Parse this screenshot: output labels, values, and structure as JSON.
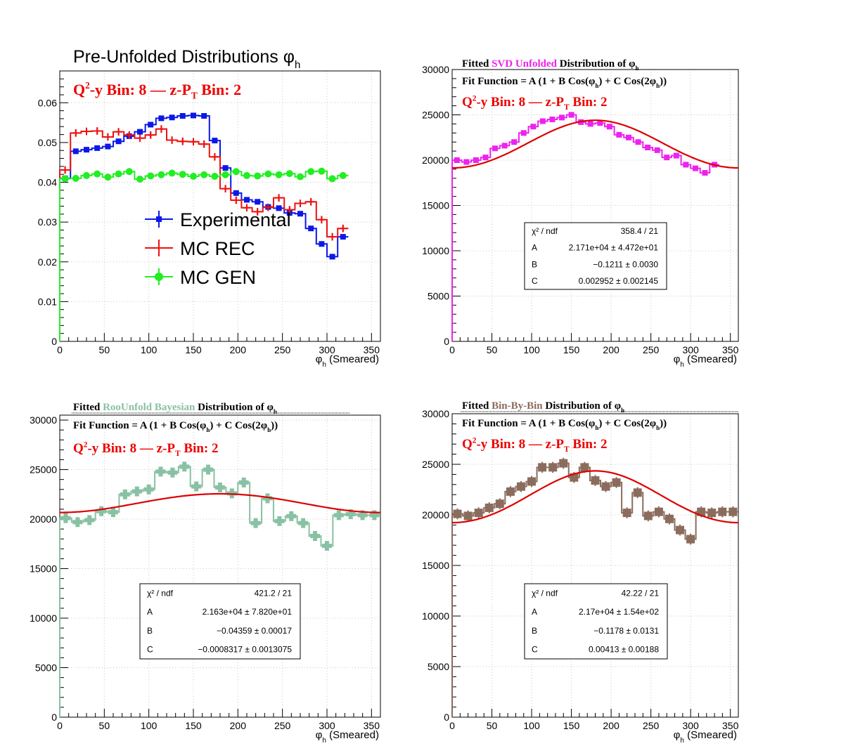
{
  "colors": {
    "experimental": "#0b18e6",
    "mc_rec": "#ee1111",
    "mc_gen": "#22ee22",
    "svd": "#ee22ee",
    "bayes": "#88c1a3",
    "bbb": "#8b6c5c",
    "fit": "#dd0000",
    "bin_label": "#ee0000"
  },
  "common": {
    "bin_label": {
      "q2y": "Q²-y Bin: 8",
      "sep": "—",
      "zpt": "z-P",
      "zpt_sub": "T",
      "zpt_end": " Bin: 2"
    },
    "fit_function": {
      "a": "Fit Function = A (1 + B Cos(φ",
      "b": "h",
      "c": ") + C Cos(2φ",
      "d": "h",
      "e": "))"
    },
    "xlabel": {
      "phi": "φ",
      "sub": "h",
      "rest": "(Smeared)"
    }
  },
  "chart_data": [
    {
      "id": "pre_unfolded",
      "type": "line",
      "title": {
        "text": "Pre-Unfolded Distributions φ",
        "sub": "h"
      },
      "xlim": [
        0,
        360
      ],
      "ylim": [
        0,
        0.068
      ],
      "x_ticks": [
        "0",
        "50",
        "100",
        "150",
        "200",
        "250",
        "300",
        "350"
      ],
      "y_ticks": [
        "0",
        "0.01",
        "0.02",
        "0.03",
        "0.04",
        "0.05",
        "0.06"
      ],
      "y_tick_values": [
        0,
        0.01,
        0.02,
        0.03,
        0.04,
        0.05,
        0.06
      ],
      "bin_width": 12,
      "legend": [
        "Experimental",
        "MC REC",
        "MC GEN"
      ],
      "series": [
        {
          "name": "Experimental",
          "values": [
            0.041,
            0.0478,
            0.0482,
            0.0486,
            0.049,
            0.0503,
            0.0516,
            0.0527,
            0.0545,
            0.0561,
            0.0563,
            0.0567,
            0.0568,
            0.0567,
            0.0505,
            0.0436,
            0.0373,
            0.0356,
            0.0351,
            0.0338,
            0.0335,
            0.0323,
            0.0321,
            0.0284,
            0.0245,
            0.0213,
            0.0263
          ]
        },
        {
          "name": "MC REC",
          "values": [
            0.0431,
            0.0524,
            0.0528,
            0.0529,
            0.0514,
            0.0527,
            0.0519,
            0.0511,
            0.0519,
            0.0534,
            0.0506,
            0.0503,
            0.0502,
            0.0496,
            0.0464,
            0.0384,
            0.0355,
            0.0336,
            0.0326,
            0.0337,
            0.0361,
            0.0331,
            0.0347,
            0.0351,
            0.0306,
            0.0263,
            0.0284
          ]
        },
        {
          "name": "MC GEN",
          "values": [
            0.0409,
            0.041,
            0.0417,
            0.0421,
            0.0413,
            0.0421,
            0.0427,
            0.0408,
            0.0416,
            0.0419,
            0.0423,
            0.042,
            0.0415,
            0.0419,
            0.0415,
            0.0419,
            0.0427,
            0.0417,
            0.0416,
            0.0421,
            0.0419,
            0.0422,
            0.0414,
            0.0427,
            0.0428,
            0.0409,
            0.0417
          ]
        }
      ]
    },
    {
      "id": "svd",
      "type": "line",
      "title": {
        "pre": "Fitted  ",
        "colored": "SVD Unfolded",
        "post": " Distribution of  φ",
        "sub": "h"
      },
      "xlim": [
        0,
        360
      ],
      "ylim": [
        0,
        30000
      ],
      "x_ticks": [
        "0",
        "50",
        "100",
        "150",
        "200",
        "250",
        "300",
        "350"
      ],
      "y_ticks": [
        "0",
        "5000",
        "10000",
        "15000",
        "20000",
        "25000",
        "30000"
      ],
      "y_tick_values": [
        0,
        5000,
        10000,
        15000,
        20000,
        25000,
        30000
      ],
      "bin_width": 12,
      "series": [
        {
          "name": "SVD Unfolded",
          "values": [
            20000,
            19800,
            20000,
            20300,
            21300,
            21600,
            22000,
            23000,
            23700,
            24300,
            24500,
            24700,
            25000,
            24200,
            24000,
            24100,
            23700,
            22800,
            22500,
            22000,
            21400,
            21100,
            20300,
            20500,
            19500,
            19100,
            18600,
            19500
          ]
        }
      ],
      "fit": {
        "A": 21710,
        "B": -0.1211,
        "C": 0.002952
      },
      "stats": [
        {
          "label": "χ² / ndf",
          "value": "358.4 / 21"
        },
        {
          "label": "A",
          "value": "2.171e+04  ± 4.472e+01"
        },
        {
          "label": "B",
          "value": "−0.1211 ± 0.0030"
        },
        {
          "label": "C",
          "value": "0.002952  ± 0.002145"
        }
      ]
    },
    {
      "id": "bayes",
      "type": "line",
      "title": {
        "pre": "Fitted  ",
        "colored": "RooUnfold Bayesian",
        "post": " Distribution of  φ",
        "sub": "h"
      },
      "xlim": [
        0,
        360
      ],
      "ylim": [
        0,
        30500
      ],
      "x_ticks": [
        "0",
        "50",
        "100",
        "150",
        "200",
        "250",
        "300",
        "350"
      ],
      "y_ticks": [
        "0",
        "5000",
        "10000",
        "15000",
        "20000",
        "25000",
        "30000"
      ],
      "y_tick_values": [
        0,
        5000,
        10000,
        15000,
        20000,
        25000,
        30000
      ],
      "bin_width": 13.33,
      "series": [
        {
          "name": "RooUnfold Bayesian",
          "values": [
            20100,
            19700,
            19900,
            20800,
            20700,
            22500,
            22800,
            23000,
            24800,
            24700,
            25300,
            23300,
            25000,
            23200,
            22600,
            23700,
            19600,
            22100,
            19800,
            20300,
            19600,
            18300,
            17300,
            20400,
            20500,
            20400,
            20400
          ]
        }
      ],
      "fit": {
        "A": 21630,
        "B": -0.04359,
        "C": -0.0008317
      },
      "stats": [
        {
          "label": "χ² / ndf",
          "value": "421.2 / 21"
        },
        {
          "label": "A",
          "value": "2.163e+04 ± 7.820e+01"
        },
        {
          "label": "B",
          "value": "−0.04359 ± 0.00017"
        },
        {
          "label": "C",
          "value": "−0.0008317 ± 0.0013075"
        }
      ]
    },
    {
      "id": "bbb",
      "type": "line",
      "title": {
        "pre": "Fitted  ",
        "colored": "Bin-By-Bin",
        "post": " Distribution of  φ",
        "sub": "h"
      },
      "xlim": [
        0,
        360
      ],
      "ylim": [
        0,
        30000
      ],
      "x_ticks": [
        "0",
        "50",
        "100",
        "150",
        "200",
        "250",
        "300",
        "350"
      ],
      "y_ticks": [
        "0",
        "5000",
        "10000",
        "15000",
        "20000",
        "25000",
        "30000"
      ],
      "y_tick_values": [
        0,
        5000,
        10000,
        15000,
        20000,
        25000,
        30000
      ],
      "bin_width": 13.33,
      "series": [
        {
          "name": "Bin-By-Bin",
          "values": [
            20100,
            19900,
            20200,
            20700,
            21100,
            22300,
            22800,
            23300,
            24700,
            24700,
            25100,
            23700,
            24700,
            23400,
            22800,
            23200,
            20200,
            22200,
            19900,
            20300,
            19600,
            18500,
            17600,
            20300,
            20200,
            20300,
            20300
          ]
        }
      ],
      "fit": {
        "A": 21700,
        "B": -0.1178,
        "C": 0.00413
      },
      "stats": [
        {
          "label": "χ² / ndf",
          "value": "42.22 / 21"
        },
        {
          "label": "A",
          "value": "2.17e+04  ± 1.54e+02"
        },
        {
          "label": "B",
          "value": "−0.1178 ± 0.0131"
        },
        {
          "label": "C",
          "value": "0.00413  ± 0.00188"
        }
      ]
    }
  ]
}
